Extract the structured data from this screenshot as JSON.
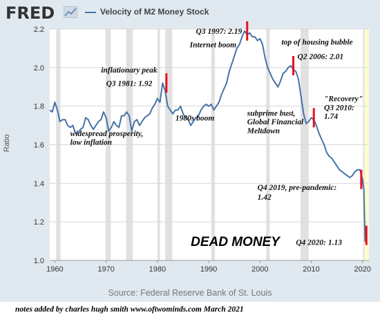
{
  "header": {
    "logo_text": "FRED",
    "logo_icon": "line-chart-icon",
    "series_title": "Velocity of M2 Money Stock"
  },
  "source_text": "Source: Federal Reserve Bank of St. Louis",
  "footer_note": "notes added by charles hugh smith   www.oftwominds.com    March 2021",
  "colors": {
    "line": "#4572a7",
    "recession": "#e1e1e1",
    "marker": "#e8101e",
    "recent_shade": "#ffffcc"
  },
  "chart_data": {
    "type": "line",
    "title": "Velocity of M2 Money Stock",
    "ylabel": "Ratio",
    "xlim": [
      1959.0,
      2021.25
    ],
    "ylim": [
      1.0,
      2.2
    ],
    "x_ticks": [
      1960,
      1970,
      1980,
      1990,
      2000,
      2010,
      2020
    ],
    "y_ticks": [
      1.0,
      1.2,
      1.4,
      1.6,
      1.8,
      2.0,
      2.2
    ],
    "x_tick_labels": [
      "1960",
      "1970",
      "1980",
      "1990",
      "2000",
      "2010",
      "2020"
    ],
    "y_tick_labels": [
      "1.0",
      "1.2",
      "1.4",
      "1.6",
      "1.8",
      "2.0",
      "2.2"
    ],
    "grid": true,
    "recessions": [
      [
        1960.25,
        1961.1
      ],
      [
        1969.9,
        1970.9
      ],
      [
        1973.9,
        1975.2
      ],
      [
        1980.0,
        1980.5
      ],
      [
        1981.5,
        1982.9
      ],
      [
        1990.5,
        1991.2
      ],
      [
        2001.2,
        2001.9
      ],
      [
        2007.9,
        2009.5
      ],
      [
        2020.1,
        2020.4
      ]
    ],
    "recent_shade": [
      2020.4,
      2021.25
    ],
    "series": [
      {
        "x": [
          1959.0,
          1959.5,
          1960.0,
          1960.5,
          1961.0,
          1961.5,
          1962.0,
          1962.5,
          1963.0,
          1963.5,
          1964.0,
          1964.5,
          1965.0,
          1965.5,
          1966.0,
          1966.5,
          1967.0,
          1967.5,
          1968.0,
          1968.5,
          1969.0,
          1969.5,
          1970.0,
          1970.5,
          1971.0,
          1971.5,
          1972.0,
          1972.5,
          1973.0,
          1973.5,
          1974.0,
          1974.5,
          1975.0,
          1975.5,
          1976.0,
          1976.5,
          1977.0,
          1977.5,
          1978.0,
          1978.5,
          1979.0,
          1979.5,
          1980.0,
          1980.5,
          1981.0,
          1981.5,
          1982.0,
          1982.5,
          1983.0,
          1983.5,
          1984.0,
          1984.5,
          1985.0,
          1985.5,
          1986.0,
          1986.5,
          1987.0,
          1987.5,
          1988.0,
          1988.5,
          1989.0,
          1989.5,
          1990.0,
          1990.5,
          1991.0,
          1991.5,
          1992.0,
          1992.5,
          1993.0,
          1993.5,
          1994.0,
          1994.5,
          1995.0,
          1995.5,
          1996.0,
          1996.5,
          1997.0,
          1997.5,
          1998.0,
          1998.5,
          1999.0,
          1999.5,
          2000.0,
          2000.5,
          2001.0,
          2001.5,
          2002.0,
          2002.5,
          2003.0,
          2003.5,
          2004.0,
          2004.5,
          2005.0,
          2005.5,
          2006.0,
          2006.5,
          2007.0,
          2007.5,
          2008.0,
          2008.5,
          2009.0,
          2009.5,
          2010.0,
          2010.5,
          2011.0,
          2011.5,
          2012.0,
          2012.5,
          2013.0,
          2013.5,
          2014.0,
          2014.5,
          2015.0,
          2015.5,
          2016.0,
          2016.5,
          2017.0,
          2017.5,
          2018.0,
          2018.5,
          2019.0,
          2019.5,
          2020.0,
          2020.25,
          2020.5,
          2020.75
        ],
        "values": [
          1.78,
          1.77,
          1.82,
          1.78,
          1.72,
          1.73,
          1.73,
          1.7,
          1.69,
          1.7,
          1.66,
          1.66,
          1.68,
          1.69,
          1.74,
          1.73,
          1.7,
          1.68,
          1.7,
          1.72,
          1.73,
          1.77,
          1.74,
          1.67,
          1.69,
          1.72,
          1.7,
          1.69,
          1.75,
          1.75,
          1.77,
          1.75,
          1.67,
          1.72,
          1.73,
          1.7,
          1.72,
          1.74,
          1.75,
          1.76,
          1.79,
          1.81,
          1.84,
          1.82,
          1.92,
          1.88,
          1.8,
          1.78,
          1.76,
          1.78,
          1.78,
          1.8,
          1.76,
          1.74,
          1.73,
          1.7,
          1.72,
          1.74,
          1.75,
          1.78,
          1.8,
          1.81,
          1.8,
          1.81,
          1.78,
          1.8,
          1.82,
          1.86,
          1.89,
          1.92,
          1.98,
          2.02,
          2.06,
          2.1,
          2.12,
          2.16,
          2.19,
          2.17,
          2.18,
          2.16,
          2.16,
          2.14,
          2.15,
          2.12,
          2.05,
          2.0,
          1.97,
          1.94,
          1.92,
          1.9,
          1.93,
          1.97,
          1.98,
          2.0,
          2.01,
          1.99,
          1.98,
          1.94,
          1.85,
          1.76,
          1.71,
          1.72,
          1.74,
          1.73,
          1.7,
          1.66,
          1.63,
          1.6,
          1.56,
          1.54,
          1.53,
          1.51,
          1.49,
          1.47,
          1.46,
          1.45,
          1.44,
          1.43,
          1.44,
          1.46,
          1.47,
          1.47,
          1.42,
          1.37,
          1.1,
          1.13
        ]
      }
    ],
    "markers": [
      {
        "x": 1981.75,
        "y": 1.92
      },
      {
        "x": 1997.5,
        "y": 2.19
      },
      {
        "x": 2006.5,
        "y": 2.01
      },
      {
        "x": 2010.5,
        "y": 1.74
      },
      {
        "x": 2019.75,
        "y": 1.42
      },
      {
        "x": 2020.75,
        "y": 1.13
      }
    ],
    "annotations": [
      {
        "text": "inflationary peak",
        "x": 1969.0,
        "y": 1.975
      },
      {
        "text": "Q3 1981: 1.92",
        "x": 1970.0,
        "y": 1.905
      },
      {
        "text": "Q3 1997:  2.19",
        "x": 1987.5,
        "y": 2.175
      },
      {
        "text": "Internet boom",
        "x": 1986.3,
        "y": 2.105
      },
      {
        "text": "top of housing bubble",
        "x": 2004.2,
        "y": 2.12
      },
      {
        "text": "Q2 2006: 2.01",
        "x": 2007.3,
        "y": 2.045
      },
      {
        "text": "1980s boom",
        "x": 1983.5,
        "y": 1.725
      },
      {
        "text": "widespread prosperity,",
        "x": 1963.0,
        "y": 1.645
      },
      {
        "text": "low inflation",
        "x": 1963.0,
        "y": 1.6
      },
      {
        "text": "subprime bust,",
        "x": 1997.5,
        "y": 1.75
      },
      {
        "text": "Global Financial",
        "x": 1997.5,
        "y": 1.705
      },
      {
        "text": "Meltdown",
        "x": 1997.5,
        "y": 1.66
      },
      {
        "text": "\"Recovery\"",
        "x": 2012.5,
        "y": 1.825
      },
      {
        "text": "Q3 2010:",
        "x": 2012.5,
        "y": 1.78
      },
      {
        "text": "1.74",
        "x": 2012.5,
        "y": 1.735
      },
      {
        "text": "Q4 2019, pre-pandemic:",
        "x": 1999.5,
        "y": 1.365
      },
      {
        "text": "1.42",
        "x": 1999.5,
        "y": 1.315
      },
      {
        "text": "Q4 2020: 1.13",
        "x": 2007.0,
        "y": 1.08
      }
    ],
    "headline": {
      "text": "DEAD MONEY",
      "x": 1986.5,
      "y": 1.075
    }
  }
}
